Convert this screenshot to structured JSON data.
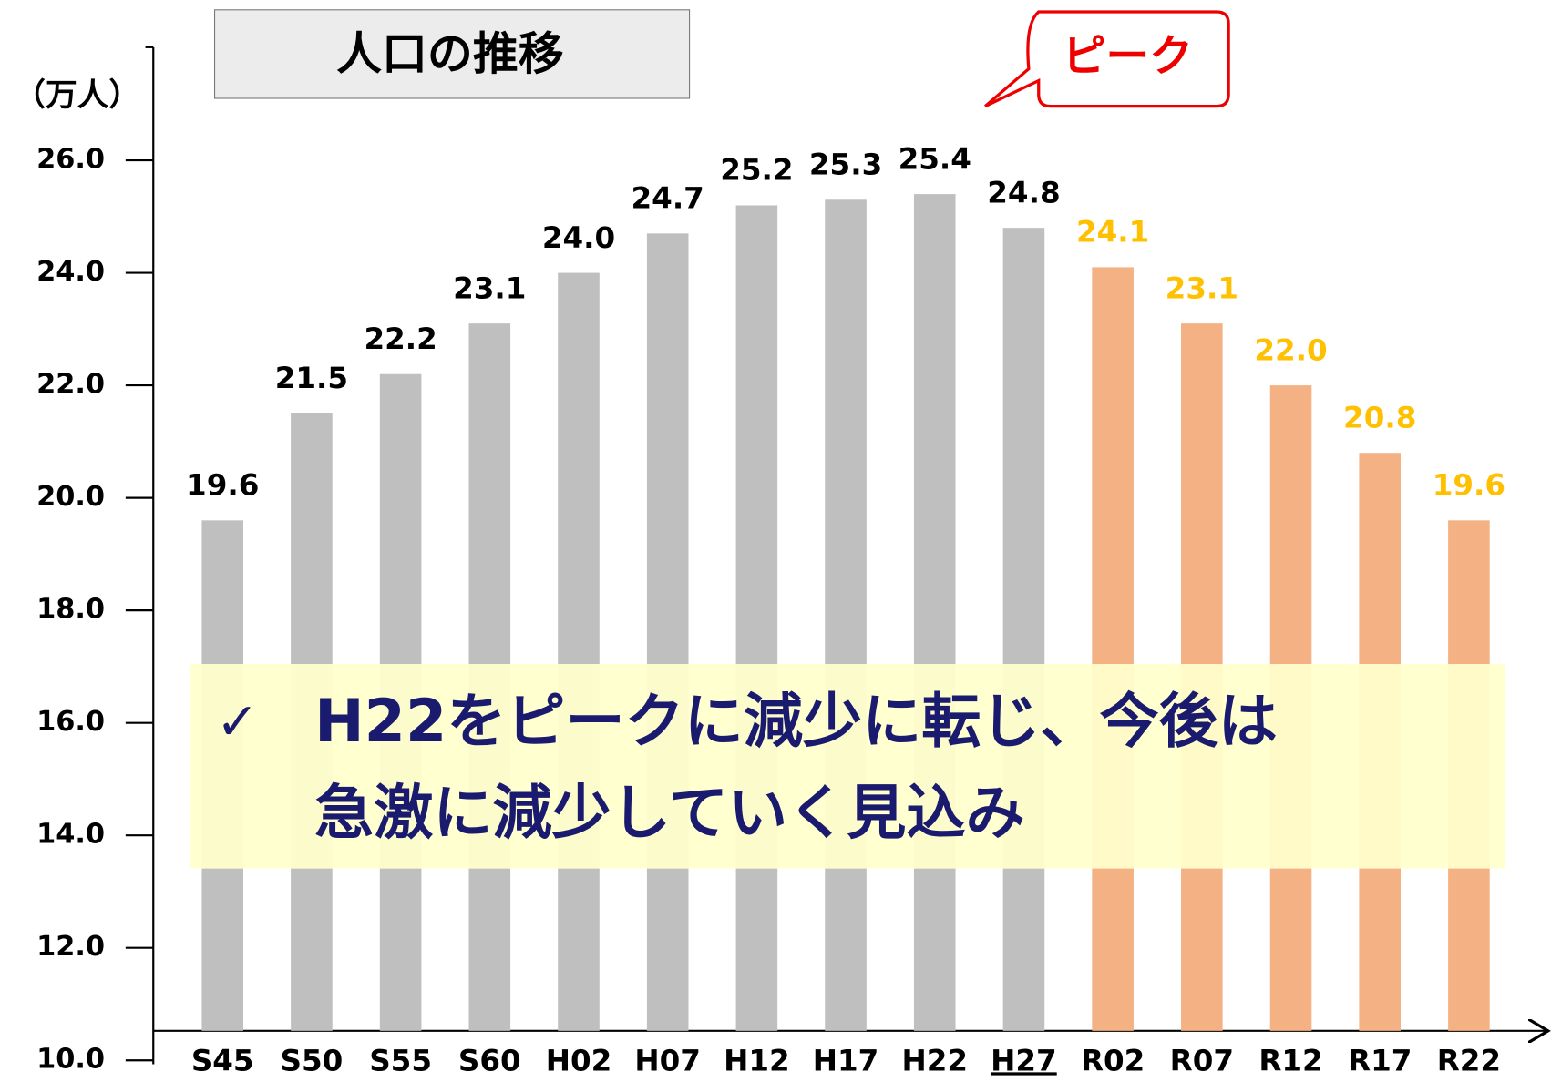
{
  "chart_data": {
    "type": "bar",
    "title": "人口の推移",
    "y_unit": "（万人）",
    "annotation": "ピーク",
    "note": [
      "✓",
      "H22をピークに減少に転じ、今後は",
      "急激に減少していく見込み"
    ],
    "categories": [
      "S45",
      "S50",
      "S55",
      "S60",
      "H02",
      "H07",
      "H12",
      "H17",
      "H22",
      "H27",
      "R02",
      "R07",
      "R12",
      "R17",
      "R22"
    ],
    "values": [
      19.6,
      21.5,
      22.2,
      23.1,
      24.0,
      24.7,
      25.2,
      25.3,
      25.4,
      24.8,
      24.1,
      23.1,
      22.0,
      20.8,
      19.6
    ],
    "value_labels": [
      "19.6",
      "21.5",
      "22.2",
      "23.1",
      "24.0",
      "24.7",
      "25.2",
      "25.3",
      "25.4",
      "24.8",
      "24.1",
      "23.1",
      "22.0",
      "20.8",
      "19.6"
    ],
    "colors": [
      "#bfbfbf",
      "#bfbfbf",
      "#bfbfbf",
      "#bfbfbf",
      "#bfbfbf",
      "#bfbfbf",
      "#bfbfbf",
      "#bfbfbf",
      "#bfbfbf",
      "#bfbfbf",
      "#f4b183",
      "#f4b183",
      "#f4b183",
      "#f4b183",
      "#f4b183"
    ],
    "label_colors": [
      "#000000",
      "#000000",
      "#000000",
      "#000000",
      "#000000",
      "#000000",
      "#000000",
      "#000000",
      "#000000",
      "#000000",
      "#ffc000",
      "#ffc000",
      "#ffc000",
      "#ffc000",
      "#ffc000"
    ],
    "ylim": [
      10,
      26
    ],
    "yticks": [
      {
        "value": 10,
        "label": "10.0"
      },
      {
        "value": 12,
        "label": "12.0"
      },
      {
        "value": 14,
        "label": "14.0"
      },
      {
        "value": 16,
        "label": "16.0"
      },
      {
        "value": 18,
        "label": "18.0"
      },
      {
        "value": 20,
        "label": "20.0"
      },
      {
        "value": 22,
        "label": "22.0"
      },
      {
        "value": 24,
        "label": "24.0"
      },
      {
        "value": 26,
        "label": "26.0"
      }
    ]
  }
}
